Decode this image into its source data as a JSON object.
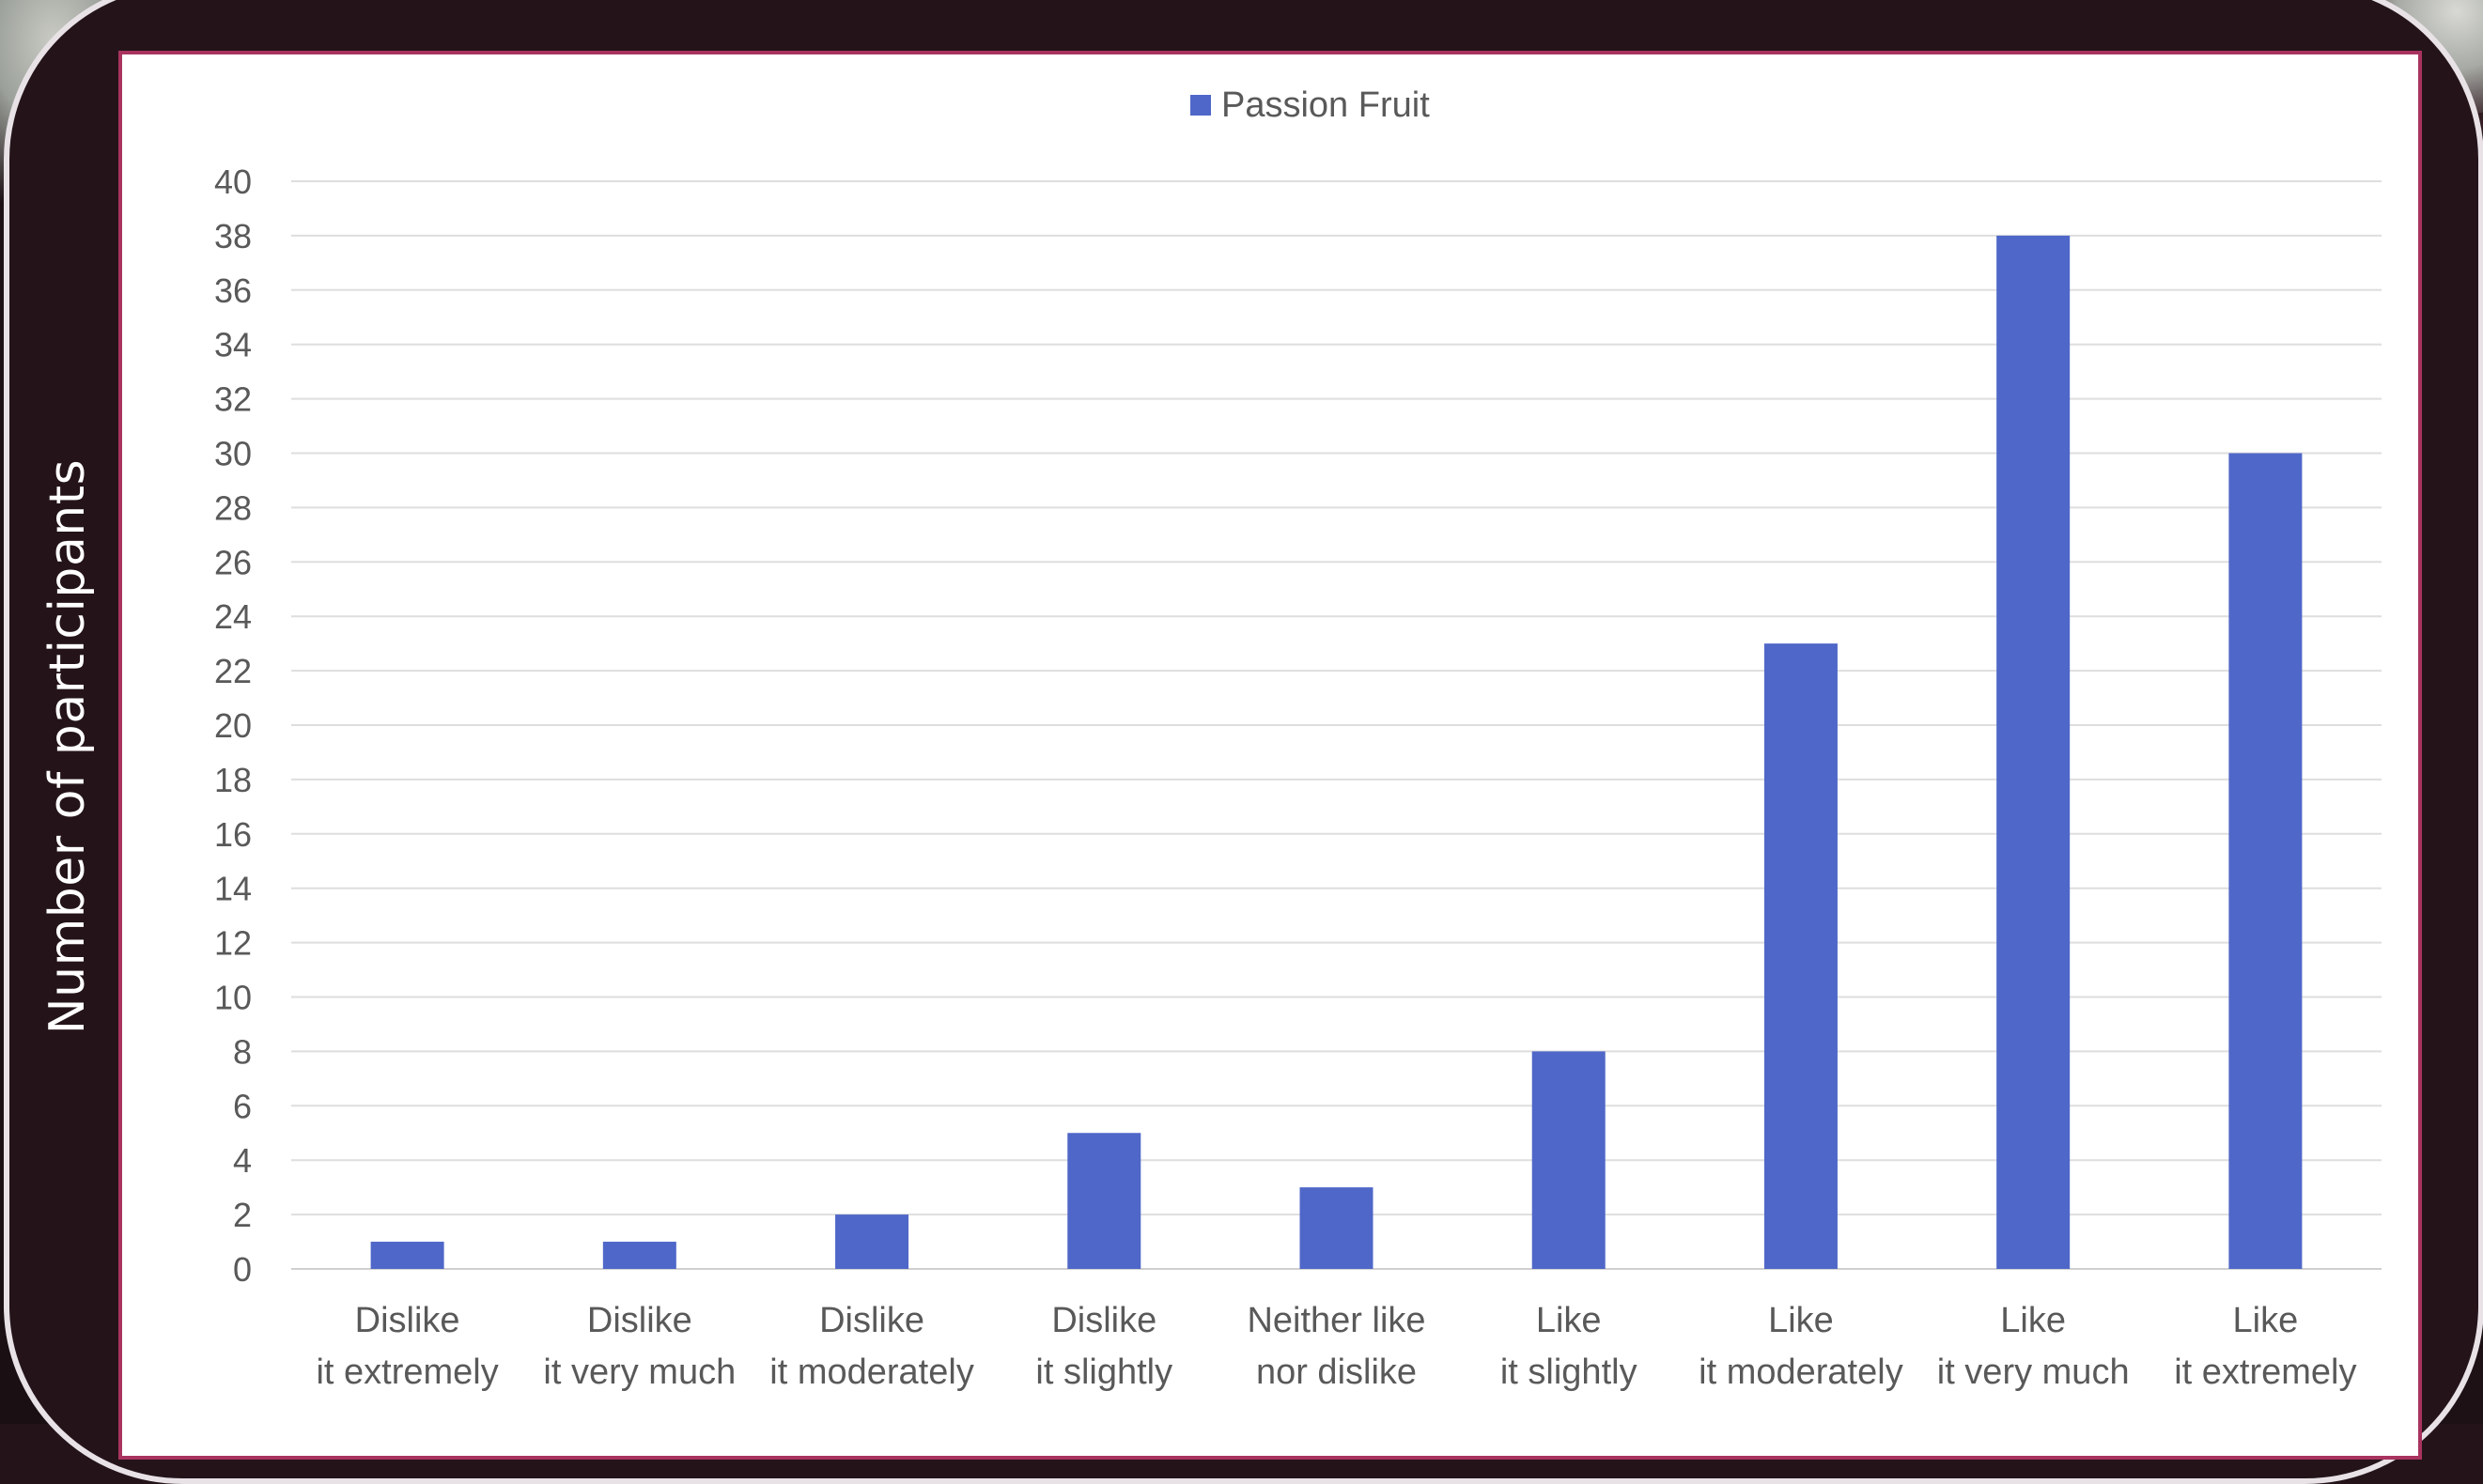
{
  "chart_data": {
    "type": "bar",
    "categories": [
      [
        "Dislike",
        "it extremely"
      ],
      [
        "Dislike",
        "it very much"
      ],
      [
        "Dislike",
        "it moderately"
      ],
      [
        "Dislike",
        "it slightly"
      ],
      [
        "Neither like",
        "nor dislike"
      ],
      [
        "Like",
        "it slightly"
      ],
      [
        "Like",
        "it moderately"
      ],
      [
        "Like",
        "it very much"
      ],
      [
        "Like",
        "it extremely"
      ]
    ],
    "series": [
      {
        "name": "Passion Fruit",
        "color": "#4f67c8",
        "values": [
          1,
          1,
          2,
          5,
          3,
          8,
          23,
          38,
          30
        ]
      }
    ],
    "ylabel": "Number of participants",
    "xlabel": "",
    "title": "",
    "ylim": [
      0,
      40
    ],
    "yticks": [
      0,
      2,
      4,
      6,
      8,
      10,
      12,
      14,
      16,
      18,
      20,
      22,
      24,
      26,
      28,
      30,
      32,
      34,
      36,
      38,
      40
    ],
    "grid": true,
    "legend_position": "top-center"
  }
}
